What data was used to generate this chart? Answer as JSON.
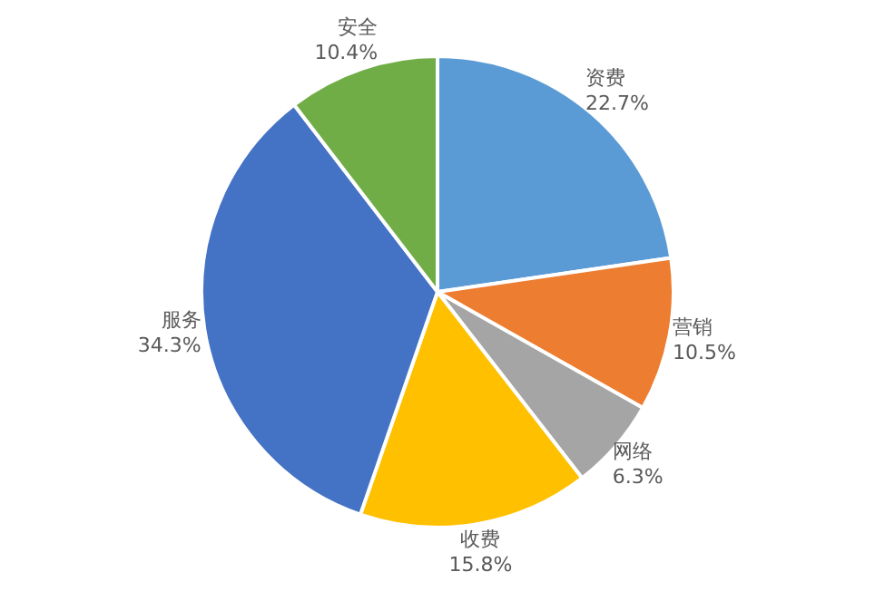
{
  "chart_data": {
    "type": "pie",
    "categories": [
      "资费",
      "营销",
      "网络",
      "收费",
      "服务",
      "安全"
    ],
    "values": [
      22.7,
      10.5,
      6.3,
      15.8,
      34.3,
      10.4
    ],
    "value_labels": [
      "22.7%",
      "10.5%",
      "6.3%",
      "15.8%",
      "34.3%",
      "10.4%"
    ],
    "colors": [
      "#5b9bd5",
      "#ed7d31",
      "#a5a5a5",
      "#ffc000",
      "#4472c4",
      "#70ad47"
    ],
    "legend": false
  }
}
